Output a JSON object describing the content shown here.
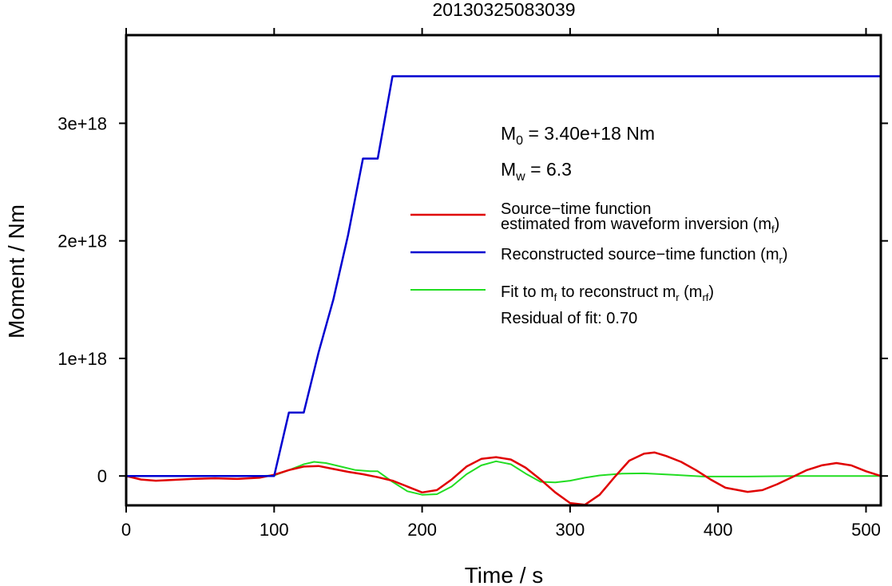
{
  "chart_data": {
    "type": "line",
    "title": "20130325083039",
    "xlabel": "Time / s",
    "ylabel": "Moment / Nm",
    "xlim": [
      0,
      510
    ],
    "ylim": [
      -2.5e+17,
      3.75e+18
    ],
    "x_ticks": [
      0,
      100,
      200,
      300,
      400,
      500
    ],
    "y_ticks": [
      0,
      1e+18,
      2e+18,
      3e+18
    ],
    "y_tick_labels": [
      "0",
      "1e+18",
      "2e+18",
      "3e+18"
    ],
    "grid": false,
    "legend_position": "right",
    "annotations": {
      "m0_label": "M",
      "m0_sub": "0",
      "m0_value": " = 3.40e+18 Nm",
      "mw_label": "M",
      "mw_sub": "w",
      "mw_value": " = 6.3",
      "residual": "Residual of fit: 0.70"
    },
    "series": [
      {
        "name": "Source-time function estimated from waveform inversion (mf)",
        "legend_lines": [
          "Source−time function",
          "estimated from waveform inversion (m",
          "f",
          ")"
        ],
        "color": "#e00000",
        "x": [
          0,
          10,
          20,
          30,
          45,
          60,
          75,
          90,
          100,
          110,
          120,
          130,
          140,
          150,
          160,
          170,
          180,
          190,
          200,
          210,
          220,
          230,
          240,
          250,
          260,
          270,
          280,
          290,
          300,
          310,
          320,
          330,
          340,
          350,
          357,
          365,
          375,
          385,
          395,
          405,
          420,
          430,
          440,
          450,
          460,
          470,
          480,
          490,
          500,
          510
        ],
        "y": [
          0,
          -3e+16,
          -4e+16,
          -3.5e+16,
          -2.5e+16,
          -2e+16,
          -2.5e+16,
          -1.5e+16,
          1e+16,
          5e+16,
          8e+16,
          8.5e+16,
          6e+16,
          3.5e+16,
          1.5e+16,
          -1e+16,
          -4e+16,
          -9e+16,
          -1.4e+17,
          -1.2e+17,
          -3e+16,
          8e+16,
          1.45e+17,
          1.6e+17,
          1.4e+17,
          7e+16,
          -3e+16,
          -1.4e+17,
          -2.3e+17,
          -2.45e+17,
          -1.6e+17,
          -1e+16,
          1.3e+17,
          1.9e+17,
          2e+17,
          1.7e+17,
          1.2e+17,
          5e+16,
          -3e+16,
          -1e+17,
          -1.35e+17,
          -1.2e+17,
          -7e+16,
          -1e+16,
          5e+16,
          9e+16,
          1.1e+17,
          9e+16,
          4e+16,
          0
        ]
      },
      {
        "name": "Reconstructed source-time function (mr)",
        "legend_main": "Reconstructed source−time function (m",
        "legend_sub": "r",
        "legend_end": ")",
        "color": "#0000d0",
        "x": [
          0,
          100,
          110,
          120,
          130,
          140,
          150,
          160,
          170,
          180,
          510
        ],
        "y": [
          0,
          0,
          5.4e+17,
          5.4e+17,
          1.05e+18,
          1.5e+18,
          2.05e+18,
          2.7e+18,
          2.7e+18,
          3.4e+18,
          3.4e+18
        ]
      },
      {
        "name": "Fit to mf to reconstruct mr (mrf)",
        "legend_main": "Fit to m",
        "legend_sub1": "f",
        "legend_mid": " to reconstruct m",
        "legend_sub2": "r",
        "legend_mid2": " (m",
        "legend_sub3": "rf",
        "legend_end": ")",
        "color": "#22dd22",
        "x": [
          0,
          90,
          100,
          110,
          120,
          127,
          135,
          145,
          155,
          165,
          170,
          180,
          190,
          200,
          210,
          220,
          230,
          240,
          250,
          260,
          270,
          280,
          290,
          300,
          310,
          320,
          335,
          350,
          370,
          390,
          420,
          450,
          480,
          510
        ],
        "y": [
          0,
          0,
          5000000000000000.0,
          5e+16,
          1e+17,
          1.2e+17,
          1.1e+17,
          8e+16,
          5e+16,
          4e+16,
          4e+16,
          -5e+16,
          -1.3e+17,
          -1.6e+17,
          -1.55e+17,
          -9e+16,
          1.5e+16,
          9e+16,
          1.25e+17,
          1e+17,
          2e+16,
          -5e+16,
          -5.5e+16,
          -4e+16,
          -1.5e+16,
          5000000000000000.0,
          2e+16,
          2.2e+16,
          1e+16,
          -5000000000000000.0,
          -5000000000000000.0,
          0,
          0,
          0
        ]
      }
    ]
  }
}
